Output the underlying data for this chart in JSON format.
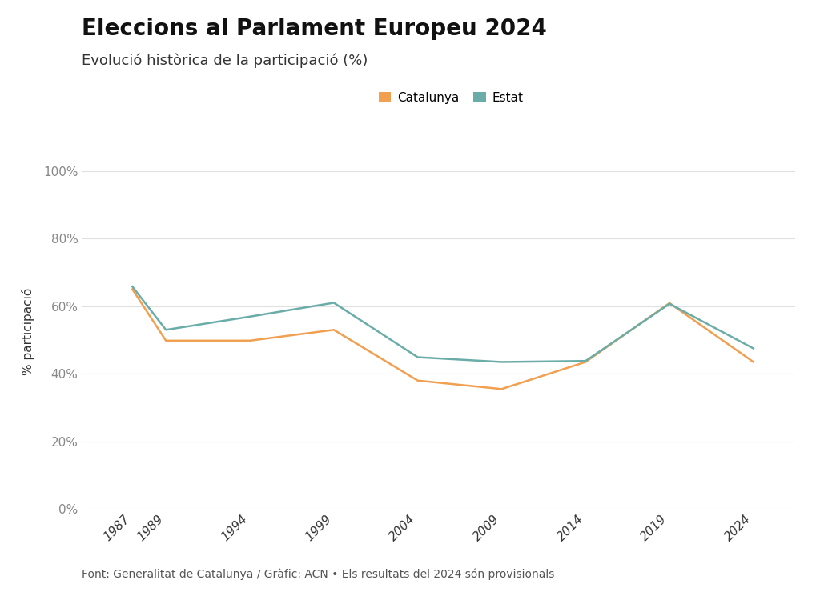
{
  "title": "Eleccions al Parlament Europeu 2024",
  "subtitle": "Evolució històrica de la participació (%)",
  "years": [
    1987,
    1989,
    1994,
    1999,
    2004,
    2009,
    2014,
    2019,
    2024
  ],
  "catalunya": [
    65.0,
    49.8,
    49.8,
    53.0,
    38.0,
    35.5,
    43.5,
    60.9,
    43.5
  ],
  "estat": [
    65.8,
    53.0,
    56.9,
    61.0,
    44.9,
    43.5,
    43.8,
    60.7,
    47.5
  ],
  "cat_color": "#f0a050",
  "estat_color": "#6aada8",
  "background": "#ffffff",
  "text_color": "#333333",
  "grid_color": "#e0e0e0",
  "ylabel": "% participació",
  "yticks": [
    0,
    20,
    40,
    60,
    80,
    100
  ],
  "ytick_labels": [
    "0%",
    "20%",
    "40%",
    "60%",
    "80%",
    "100%"
  ],
  "legend_cat": "Catalunya",
  "legend_estat": "Estat",
  "footnote": "Font: Generalitat de Catalunya / Gràfic: ACN • Els resultats del 2024 són provisionals",
  "line_width": 1.8,
  "title_fontsize": 20,
  "subtitle_fontsize": 13,
  "tick_fontsize": 11,
  "ylabel_fontsize": 11,
  "legend_fontsize": 11,
  "footnote_fontsize": 10
}
